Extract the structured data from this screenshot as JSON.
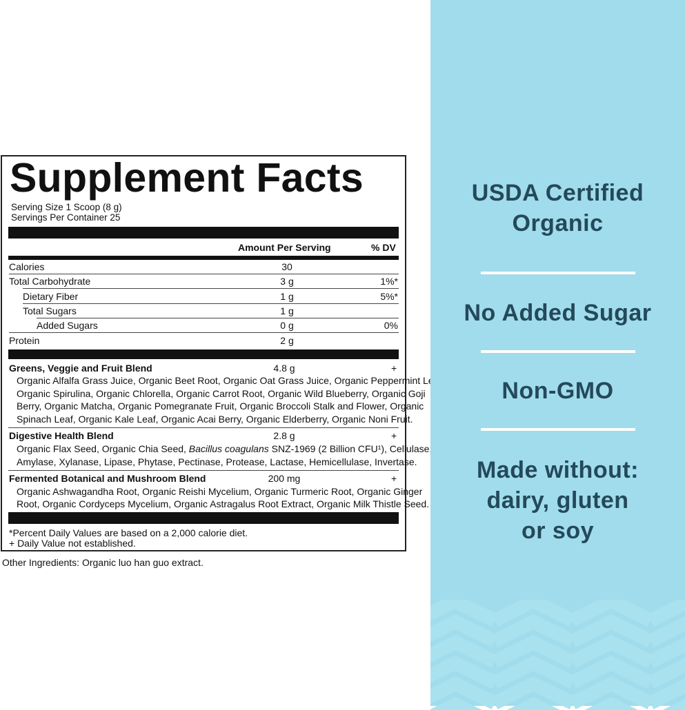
{
  "label": {
    "title": "Supplement Facts",
    "serving_size": "Serving Size 1 Scoop (8 g)",
    "servings_per_container": "Servings Per Container 25",
    "col_amount": "Amount Per Serving",
    "col_dv": "% DV",
    "nutrients": [
      {
        "name": "Calories",
        "amount": "30",
        "dv": ""
      },
      {
        "name": "Total Carbohydrate",
        "amount": "3 g",
        "dv": "1%*"
      },
      {
        "name": "Dietary Fiber",
        "amount": "1 g",
        "dv": "5%*"
      },
      {
        "name": "Total Sugars",
        "amount": "1 g",
        "dv": ""
      },
      {
        "name": "Added Sugars",
        "amount": "0 g",
        "dv": "0%"
      },
      {
        "name": "Protein",
        "amount": "2 g",
        "dv": ""
      }
    ],
    "blends": [
      {
        "name": "Greens, Veggie and Fruit Blend",
        "amount": "4.8 g",
        "dv": "+",
        "lines": [
          "Organic Alfalfa Grass Juice, Organic Beet Root, Organic Oat Grass Juice, Organic Peppermint Leaf,",
          "Organic Spirulina, Organic Chlorella, Organic Carrot Root, Organic Wild Blueberry, Organic Goji",
          "Berry, Organic Matcha, Organic Pomegranate Fruit, Organic Broccoli Stalk and Flower, Organic",
          "Spinach Leaf, Organic Kale Leaf, Organic Acai Berry, Organic Elderberry, Organic Noni Fruit."
        ]
      },
      {
        "name": "Digestive Health Blend",
        "amount": "2.8 g",
        "dv": "+",
        "line1_pre": "Organic Flax Seed, Organic Chia Seed, ",
        "line1_italic": "Bacillus coagulans",
        "line1_post": " SNZ-1969 (2 Billion CFU¹), Cellulase,",
        "line2": "Amylase, Xylanase, Lipase, Phytase, Pectinase, Protease, Lactase, Hemicellulase, Invertase."
      },
      {
        "name": "Fermented Botanical and Mushroom Blend",
        "amount": "200 mg",
        "dv": "+",
        "lines": [
          "Organic Ashwagandha Root, Organic Reishi Mycelium, Organic Turmeric Root, Organic Ginger",
          "Root, Organic Cordyceps Mycelium, Organic Astragalus Root Extract, Organic Milk Thistle Seed."
        ]
      }
    ],
    "footnote_1": "*Percent Daily Values are based on a 2,000 calorie diet.",
    "footnote_2": "+ Daily Value not established."
  },
  "other_ingredients": "Other Ingredients: Organic luo han guo extract.",
  "panel": {
    "background": "#a0dcec",
    "text_color": "#24495a",
    "claims": [
      [
        "USDA Certified",
        "Organic"
      ],
      [
        "No Added Sugar"
      ],
      [
        "Non-GMO"
      ],
      [
        "Made without:",
        "dairy, gluten",
        "or soy"
      ]
    ]
  }
}
